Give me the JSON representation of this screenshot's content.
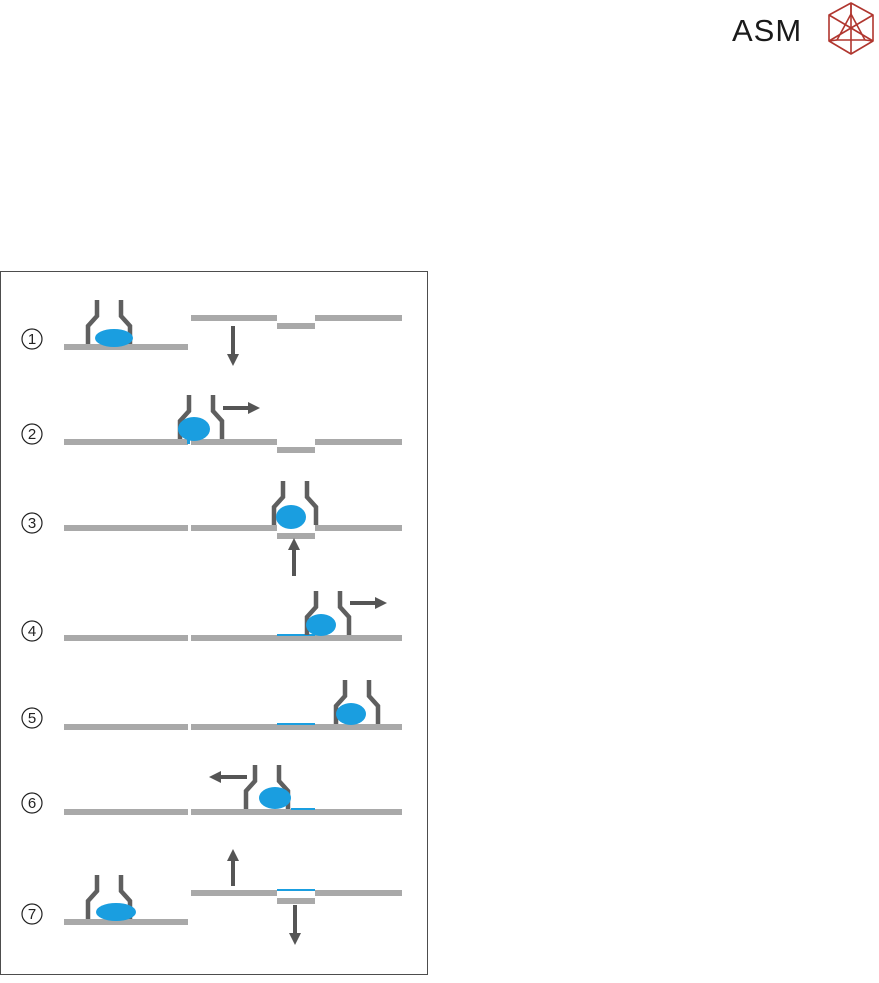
{
  "brand": {
    "name": "ASM",
    "logo_color": "#b0362f",
    "text_color": "#1a1a1a"
  },
  "colors": {
    "liquid": "#1a9ee0",
    "bar": "#a9a9a9",
    "nozzle": "#5f5f5f",
    "arrow": "#555555",
    "frame": "#4d4d4d"
  },
  "steps": [
    {
      "number": "1"
    },
    {
      "number": "2"
    },
    {
      "number": "3"
    },
    {
      "number": "4"
    },
    {
      "number": "5"
    },
    {
      "number": "6"
    },
    {
      "number": "7"
    }
  ]
}
